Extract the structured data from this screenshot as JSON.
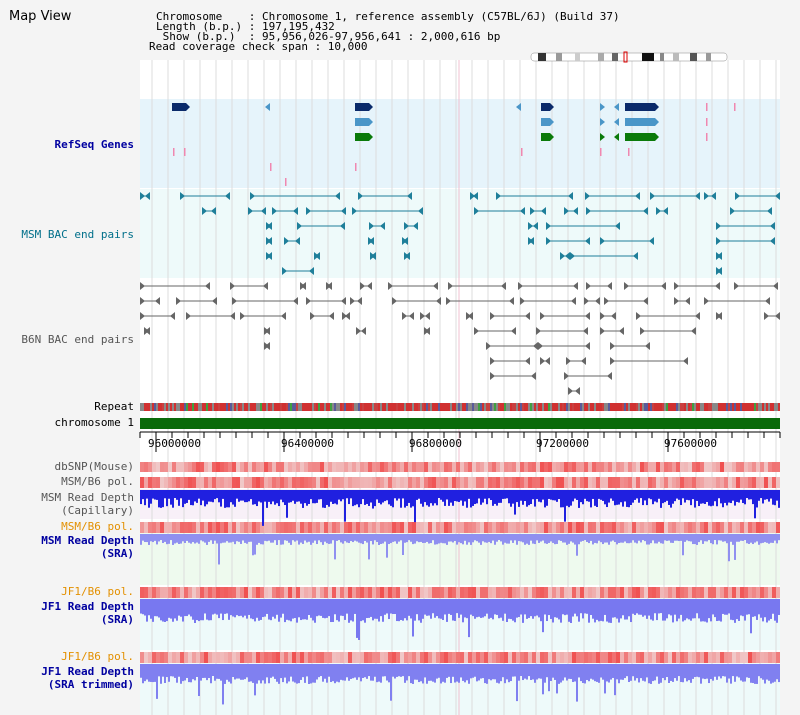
{
  "title": "Map View",
  "header": {
    "lines": [
      "Chromosome    : Chromosome 1, reference assembly (C57BL/6J) (Build 37)",
      "Length (b.p.) : 197,195,432",
      " Show (b.p.)  : 95,956,026-97,956,641 : 2,000,616 bp",
      "Read coverage check span : 10,000"
    ]
  },
  "tracks": {
    "refseq": "RefSeq Genes",
    "msm_bac": "MSM BAC end pairs",
    "b6n_bac": "B6N BAC end pairs",
    "repeat": "Repeat",
    "chromosome": "chromosome 1",
    "dbsnp": "dbSNP(Mouse)",
    "msm_b6_pol_1": "MSM/B6 pol.",
    "msm_depth_cap_1": "MSM Read Depth",
    "msm_depth_cap_2": "(Capillary)",
    "msm_b6_pol_2": "MSM/B6 pol.",
    "msm_depth_sra_1": "MSM Read Depth",
    "msm_depth_sra_2": "(SRA)",
    "jf1_b6_pol_1": "JF1/B6 pol.",
    "jf1_depth_sra_1": "JF1 Read Depth",
    "jf1_depth_sra_2": "(SRA)",
    "jf1_b6_pol_2": "JF1/B6 pol.",
    "jf1_depth_trim_1": "JF1 Read Depth",
    "jf1_depth_trim_2": "(SRA trimmed)"
  },
  "axis": {
    "ticks": [
      "96000000",
      "96400000",
      "96800000",
      "97200000",
      "97600000"
    ]
  },
  "colors": {
    "refseq_blue_dark": "#0a2a6a",
    "refseq_blue_light": "#4a96c8",
    "refseq_green": "#0a7a0a",
    "msm_teal": "#1f7f9a",
    "b6n_gray": "#666666",
    "chromosome_green": "#0a6a0a",
    "label_navy": "#0000a0",
    "label_teal": "#006f8a",
    "label_gray": "#555555",
    "label_orange": "#e39000"
  }
}
